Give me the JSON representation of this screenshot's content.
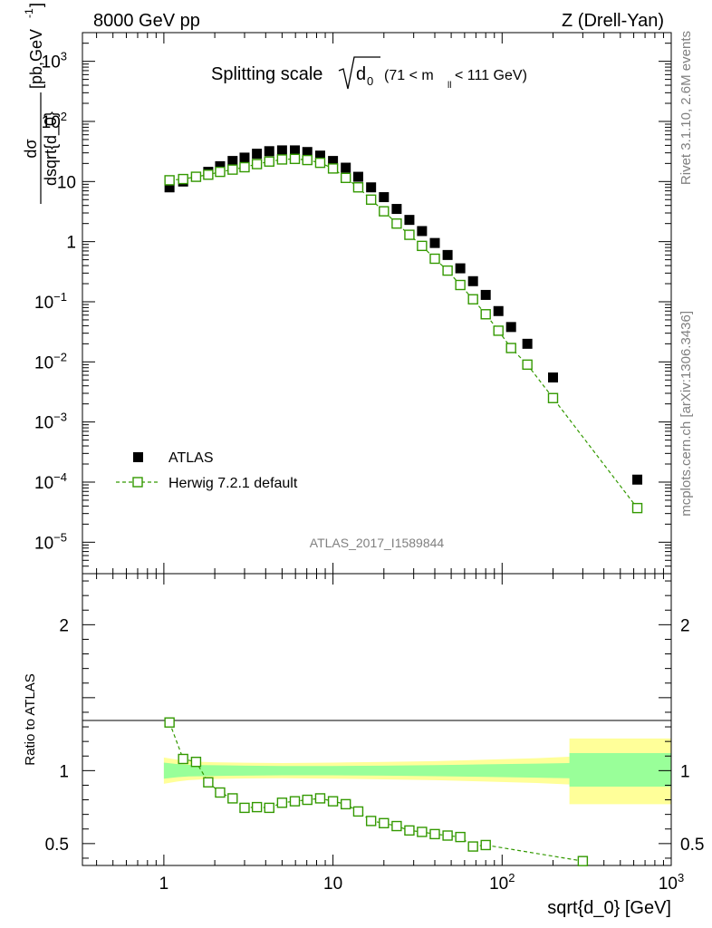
{
  "header": {
    "left": "8000 GeV pp",
    "right": "Z (Drell-Yan)"
  },
  "side_labels": {
    "rivet": "Rivet 3.1.10,  2.6M events",
    "mcplots": "mcplots.cern.ch [arXiv:1306.3436]"
  },
  "colors": {
    "herwig": "#339900",
    "band_inner": "#99ff99",
    "band_outer": "#ffff99",
    "atlas": "#000000"
  },
  "chart_data": [
    {
      "type": "scatter",
      "title_main": "Splitting scale",
      "title_sqrt": "d",
      "title_sub": "0",
      "title_cut": "(71 < m",
      "title_cut_sub": "ll",
      "title_cut_end": "< 111 GeV)",
      "analysis_id": "ATLAS_2017_I1589844",
      "ylabel_num": "dσ",
      "ylabel_den": "dsqrt{d_0}",
      "ylabel_units": "[pb,GeV",
      "ylabel_units_sup": "-1",
      "ylabel_units_end": "]",
      "xscale": "log",
      "yscale": "log",
      "xlim": [
        0.33,
        1000
      ],
      "ylim": [
        3e-06,
        3000
      ],
      "yticks": [
        {
          "v": 1e-05,
          "label": "10",
          "exp": "−5"
        },
        {
          "v": 0.0001,
          "label": "10",
          "exp": "−4"
        },
        {
          "v": 0.001,
          "label": "10",
          "exp": "−3"
        },
        {
          "v": 0.01,
          "label": "10",
          "exp": "−2"
        },
        {
          "v": 0.1,
          "label": "10",
          "exp": "−1"
        },
        {
          "v": 1,
          "label": "1",
          "exp": ""
        },
        {
          "v": 10,
          "label": "10",
          "exp": ""
        },
        {
          "v": 100,
          "label": "10",
          "exp": "2"
        },
        {
          "v": 1000,
          "label": "10",
          "exp": "3"
        }
      ],
      "legend": {
        "placement": "bottom-left",
        "atlas_label": "ATLAS",
        "herwig_label": "Herwig 7.2.1 default"
      },
      "series": [
        {
          "name": "ATLAS",
          "x": [
            1.08,
            1.3,
            1.55,
            1.83,
            2.15,
            2.55,
            3.0,
            3.55,
            4.2,
            5.0,
            5.95,
            7.05,
            8.4,
            10.0,
            11.9,
            14.1,
            16.8,
            20.0,
            23.8,
            28.3,
            33.6,
            40.0,
            47.6,
            56.6,
            67.3,
            80.0,
            95.1,
            113,
            141,
            200,
            630
          ],
          "y": [
            8,
            10,
            12,
            14.5,
            18,
            22,
            25,
            29,
            32,
            33,
            33,
            31,
            27,
            22,
            17,
            12,
            8,
            5.5,
            3.5,
            2.3,
            1.5,
            0.95,
            0.6,
            0.36,
            0.22,
            0.13,
            0.07,
            0.038,
            0.02,
            0.0055,
            0.00011
          ]
        },
        {
          "name": "Herwig 7.2.1 default",
          "x": [
            1.08,
            1.3,
            1.55,
            1.83,
            2.15,
            2.55,
            3.0,
            3.55,
            4.2,
            5.0,
            5.95,
            7.05,
            8.4,
            10.0,
            11.9,
            14.1,
            16.8,
            20.0,
            23.8,
            28.3,
            33.6,
            40.0,
            47.6,
            56.6,
            67.3,
            80.0,
            95.1,
            113,
            141,
            200,
            630
          ],
          "y": [
            10.5,
            11,
            12,
            13,
            14.5,
            15.8,
            17.3,
            19.5,
            21.5,
            23.3,
            23.8,
            22.8,
            20.5,
            16.5,
            11.5,
            8,
            5,
            3.2,
            2.0,
            1.3,
            0.85,
            0.52,
            0.33,
            0.19,
            0.11,
            0.062,
            0.033,
            0.017,
            0.009,
            0.0025,
            3.7e-05
          ]
        }
      ]
    },
    {
      "type": "scatter",
      "ylabel": "Ratio to ATLAS",
      "xlabel": "sqrt{d_0} [GeV]",
      "xscale": "log",
      "xlim": [
        0.33,
        1000
      ],
      "ylim": [
        0.35,
        2.35
      ],
      "xticks": [
        {
          "v": 1,
          "label": "1",
          "exp": ""
        },
        {
          "v": 10,
          "label": "10",
          "exp": ""
        },
        {
          "v": 100,
          "label": "10",
          "exp": "2"
        },
        {
          "v": 1000,
          "label": "10",
          "exp": "3"
        }
      ],
      "yticks": [
        {
          "v": 0.5,
          "label": "0.5"
        },
        {
          "v": 1,
          "label": "1"
        },
        {
          "v": 2,
          "label": "2"
        }
      ],
      "bands": {
        "x_edges": [
          1.0,
          1.2,
          1.4,
          1.7,
          2.0,
          3.0,
          5.0,
          10.0,
          20.0,
          40.0,
          80.0,
          160.0,
          250.0,
          250.0,
          1000.0
        ],
        "inner_lo": [
          0.945,
          0.955,
          0.96,
          0.962,
          0.963,
          0.966,
          0.968,
          0.968,
          0.966,
          0.962,
          0.957,
          0.952,
          0.948,
          0.89,
          0.89
        ],
        "inner_hi": [
          1.055,
          1.045,
          1.04,
          1.038,
          1.037,
          1.034,
          1.032,
          1.032,
          1.034,
          1.038,
          1.043,
          1.048,
          1.052,
          1.12,
          1.12
        ],
        "outer_lo": [
          0.91,
          0.925,
          0.935,
          0.94,
          0.943,
          0.946,
          0.948,
          0.945,
          0.94,
          0.935,
          0.925,
          0.915,
          0.905,
          0.77,
          0.77
        ],
        "outer_hi": [
          1.09,
          1.075,
          1.065,
          1.06,
          1.057,
          1.054,
          1.052,
          1.055,
          1.06,
          1.065,
          1.075,
          1.085,
          1.095,
          1.22,
          1.22
        ]
      },
      "series": [
        {
          "name": "Herwig 7.2.1 default / ATLAS",
          "x": [
            1.08,
            1.3,
            1.55,
            1.83,
            2.15,
            2.55,
            3.0,
            3.55,
            4.2,
            5.0,
            5.95,
            7.05,
            8.4,
            10.0,
            11.9,
            14.1,
            16.8,
            20.0,
            23.8,
            28.3,
            33.6,
            40.0,
            47.6,
            56.6,
            67.3,
            80.0,
            300
          ],
          "y": [
            1.33,
            1.08,
            1.06,
            0.92,
            0.85,
            0.81,
            0.745,
            0.75,
            0.745,
            0.78,
            0.79,
            0.8,
            0.81,
            0.79,
            0.77,
            0.72,
            0.655,
            0.64,
            0.62,
            0.59,
            0.58,
            0.565,
            0.555,
            0.545,
            0.48,
            0.49,
            0.38
          ]
        }
      ]
    }
  ]
}
